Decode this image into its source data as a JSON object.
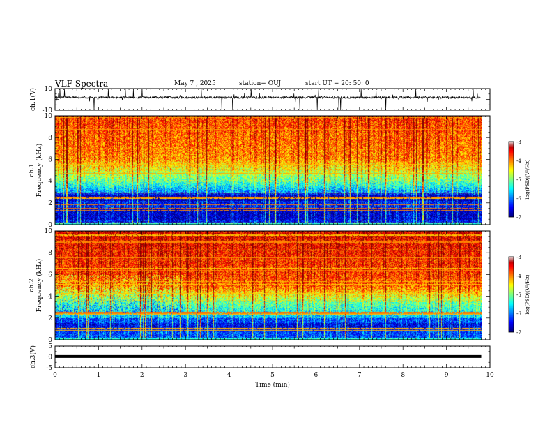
{
  "header": {
    "title": "VLF Spectra",
    "date": "May 7 , 2025",
    "station": "station= OUJ",
    "start_ut": "start UT = 20: 50: 0"
  },
  "chart_data": [
    {
      "type": "line",
      "panel": "ch1-waveform",
      "ylabel": "ch.1(V)",
      "ylim": [
        -10,
        10
      ],
      "yticks": [
        "10",
        "-10"
      ],
      "xlim": [
        0,
        10
      ],
      "color": "#000000"
    },
    {
      "type": "heatmap",
      "panel": "ch1-spectrogram",
      "ylabel_lines": [
        "ch.1",
        "Frequency (kHz)"
      ],
      "ylim": [
        0,
        10
      ],
      "yticks": [
        "0",
        "2",
        "4",
        "6",
        "8",
        "10"
      ],
      "xlim": [
        0,
        10
      ],
      "data_end_min": 9.8,
      "colorbar": {
        "label": "log(PSD)(V²/Hz)",
        "range": [
          -7,
          -3
        ],
        "ticks": [
          "-3",
          "-4",
          "-5",
          "-6",
          "-7"
        ]
      }
    },
    {
      "type": "heatmap",
      "panel": "ch2-spectrogram",
      "ylabel_lines": [
        "ch.2",
        "Frequency (kHz)"
      ],
      "ylim": [
        0,
        10
      ],
      "yticks": [
        "0",
        "2",
        "4",
        "6",
        "8",
        "10"
      ],
      "xlim": [
        0,
        10
      ],
      "data_end_min": 9.8,
      "colorbar": {
        "label": "log(PSD)(V²/Hz)",
        "range": [
          -7,
          -3
        ],
        "ticks": [
          "-3",
          "-4",
          "-5",
          "-6",
          "-7"
        ]
      }
    },
    {
      "type": "line",
      "panel": "ch3-waveform",
      "ylabel": "ch.3(V)",
      "ylim": [
        -5,
        5
      ],
      "yticks": [
        "5",
        "0",
        "-5"
      ],
      "xlim": [
        0,
        10
      ],
      "color": "#000000",
      "xlabel": "Time (min)",
      "xticks": [
        "0",
        "1",
        "2",
        "3",
        "4",
        "5",
        "6",
        "7",
        "8",
        "9",
        "10"
      ]
    }
  ]
}
